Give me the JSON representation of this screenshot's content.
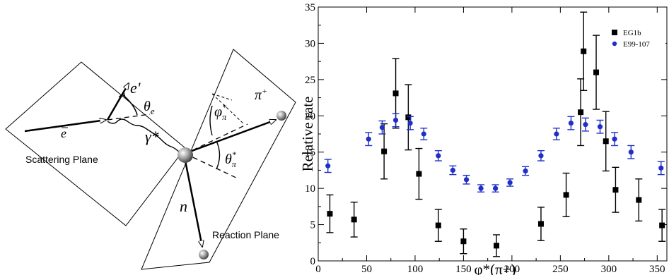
{
  "diagram": {
    "scattering_plane_label": "Scattering Plane",
    "reaction_plane_label": "Reaction Plane",
    "e_in_label": "e",
    "e_out_label": "e'",
    "theta_e_label": "θ",
    "theta_e_sub": "e",
    "gamma_label": "γ*",
    "phi_label": "φ",
    "phi_sub": "π",
    "phi_sup": "*",
    "theta_pi_label": "θ",
    "theta_pi_sub": "π",
    "theta_pi_sup": "*",
    "pi_label": "π",
    "pi_sup": "+",
    "n_label": "n"
  },
  "chart_data": {
    "type": "scatter",
    "xlabel": "φ*(π+)",
    "ylabel": "Relative rate",
    "xlim": [
      0,
      360
    ],
    "ylim": [
      0,
      35
    ],
    "x_ticks": [
      0,
      50,
      100,
      150,
      200,
      250,
      300,
      350
    ],
    "y_ticks": [
      0,
      5,
      10,
      15,
      20,
      25,
      30,
      35
    ],
    "grid": false,
    "legend_position": "top-right",
    "series": [
      {
        "name": "EG1b",
        "color": "#000000",
        "marker": "square",
        "points": [
          {
            "x": 12,
            "y": 6.5,
            "err": 2.6
          },
          {
            "x": 37,
            "y": 5.7,
            "err": 2.4
          },
          {
            "x": 68,
            "y": 15.1,
            "err": 3.8
          },
          {
            "x": 80,
            "y": 23.1,
            "err": 4.8
          },
          {
            "x": 93,
            "y": 19.8,
            "err": 4.5
          },
          {
            "x": 104,
            "y": 12.0,
            "err": 3.5
          },
          {
            "x": 124,
            "y": 4.9,
            "err": 2.2
          },
          {
            "x": 150,
            "y": 2.7,
            "err": 1.7
          },
          {
            "x": 184,
            "y": 2.1,
            "err": 1.5
          },
          {
            "x": 230,
            "y": 5.1,
            "err": 2.3
          },
          {
            "x": 256,
            "y": 9.1,
            "err": 3.0
          },
          {
            "x": 271,
            "y": 20.5,
            "err": 4.6
          },
          {
            "x": 274,
            "y": 28.9,
            "err": 5.4
          },
          {
            "x": 287,
            "y": 26.0,
            "err": 5.1
          },
          {
            "x": 297,
            "y": 16.5,
            "err": 4.1
          },
          {
            "x": 307,
            "y": 9.8,
            "err": 3.1
          },
          {
            "x": 331,
            "y": 8.4,
            "err": 2.9
          },
          {
            "x": 355,
            "y": 4.9,
            "err": 2.2
          }
        ]
      },
      {
        "name": "E99-107",
        "color": "#1f2fc8",
        "marker": "circle",
        "points": [
          {
            "x": 10,
            "y": 13.1,
            "err": 0.9
          },
          {
            "x": 52,
            "y": 16.8,
            "err": 0.9
          },
          {
            "x": 66,
            "y": 18.4,
            "err": 0.9
          },
          {
            "x": 80,
            "y": 19.4,
            "err": 0.9
          },
          {
            "x": 95,
            "y": 19.0,
            "err": 0.9
          },
          {
            "x": 109,
            "y": 17.5,
            "err": 0.8
          },
          {
            "x": 124,
            "y": 14.5,
            "err": 0.7
          },
          {
            "x": 139,
            "y": 12.5,
            "err": 0.6
          },
          {
            "x": 153,
            "y": 11.2,
            "err": 0.6
          },
          {
            "x": 168,
            "y": 10.0,
            "err": 0.5
          },
          {
            "x": 183,
            "y": 10.0,
            "err": 0.5
          },
          {
            "x": 198,
            "y": 10.8,
            "err": 0.5
          },
          {
            "x": 214,
            "y": 12.4,
            "err": 0.6
          },
          {
            "x": 230,
            "y": 14.5,
            "err": 0.7
          },
          {
            "x": 246,
            "y": 17.5,
            "err": 0.8
          },
          {
            "x": 261,
            "y": 19.0,
            "err": 0.9
          },
          {
            "x": 276,
            "y": 18.8,
            "err": 0.9
          },
          {
            "x": 291,
            "y": 18.5,
            "err": 0.9
          },
          {
            "x": 306,
            "y": 16.8,
            "err": 0.9
          },
          {
            "x": 323,
            "y": 15.0,
            "err": 0.9
          },
          {
            "x": 354,
            "y": 12.8,
            "err": 0.9
          }
        ]
      }
    ]
  }
}
